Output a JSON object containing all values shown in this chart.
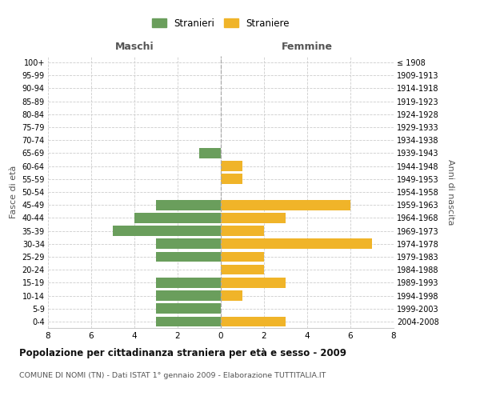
{
  "age_groups_bottom_to_top": [
    "0-4",
    "5-9",
    "10-14",
    "15-19",
    "20-24",
    "25-29",
    "30-34",
    "35-39",
    "40-44",
    "45-49",
    "50-54",
    "55-59",
    "60-64",
    "65-69",
    "70-74",
    "75-79",
    "80-84",
    "85-89",
    "90-94",
    "95-99",
    "100+"
  ],
  "birth_years_bottom_to_top": [
    "2004-2008",
    "1999-2003",
    "1994-1998",
    "1989-1993",
    "1984-1988",
    "1979-1983",
    "1974-1978",
    "1969-1973",
    "1964-1968",
    "1959-1963",
    "1954-1958",
    "1949-1953",
    "1944-1948",
    "1939-1943",
    "1934-1938",
    "1929-1933",
    "1924-1928",
    "1919-1923",
    "1914-1918",
    "1909-1913",
    "≤ 1908"
  ],
  "maschi_bottom_to_top": [
    3,
    3,
    3,
    3,
    0,
    3,
    3,
    5,
    4,
    3,
    0,
    0,
    0,
    1,
    0,
    0,
    0,
    0,
    0,
    0,
    0
  ],
  "femmine_bottom_to_top": [
    3,
    0,
    1,
    3,
    2,
    2,
    7,
    2,
    3,
    6,
    0,
    1,
    1,
    0,
    0,
    0,
    0,
    0,
    0,
    0,
    0
  ],
  "color_maschi": "#6a9e5c",
  "color_femmine": "#f0b429",
  "title": "Popolazione per cittadinanza straniera per età e sesso - 2009",
  "subtitle": "COMUNE DI NOMI (TN) - Dati ISTAT 1° gennaio 2009 - Elaborazione TUTTITALIA.IT",
  "xlabel_left": "Maschi",
  "xlabel_right": "Femmine",
  "ylabel_left": "Fasce di età",
  "ylabel_right": "Anni di nascita",
  "legend_maschi": "Stranieri",
  "legend_femmine": "Straniere",
  "xlim": 8,
  "background_color": "#ffffff",
  "grid_color": "#cccccc"
}
